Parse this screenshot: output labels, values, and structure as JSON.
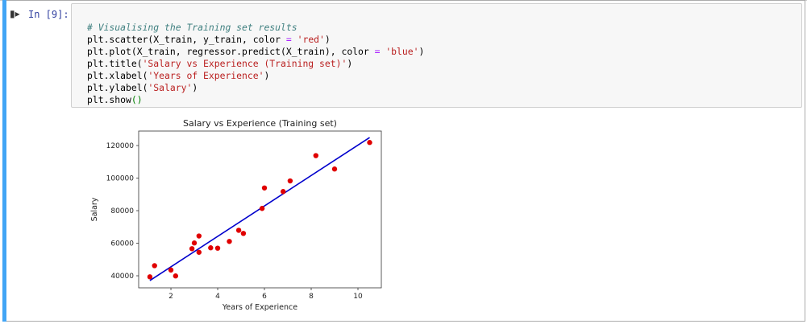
{
  "cell": {
    "prompt": "In [9]:",
    "run_icon": "step-run-icon",
    "code_lines": [
      {
        "comment": "# Visualising the Training set results"
      },
      {
        "pre": "plt.scatter(X_train, y_train, color ",
        "op": "=",
        "mid": " ",
        "str": "'red'",
        "post": ")"
      },
      {
        "pre": "plt.plot(X_train, regressor.predict(X_train), color ",
        "op": "=",
        "mid": " ",
        "str": "'blue'",
        "post": ")"
      },
      {
        "pre": "plt.title(",
        "str": "'Salary vs Experience (Training set)'",
        "post": ")"
      },
      {
        "pre": "plt.xlabel(",
        "str": "'Years of Experience'",
        "post": ")"
      },
      {
        "pre": "plt.ylabel(",
        "str": "'Salary'",
        "post": ")"
      },
      {
        "pre": "plt.show",
        "paren": "()"
      }
    ]
  },
  "chart_data": {
    "type": "scatter",
    "title": "Salary vs Experience (Training set)",
    "xlabel": "Years of Experience",
    "ylabel": "Salary",
    "xlim": [
      0.62,
      11.0
    ],
    "ylim": [
      32600,
      128900
    ],
    "xticks": [
      2,
      4,
      6,
      8,
      10
    ],
    "yticks": [
      40000,
      60000,
      80000,
      100000,
      120000
    ],
    "grid": false,
    "scatter_color": "#e00000",
    "line_color": "#0000cc",
    "points": {
      "x": [
        1.1,
        1.3,
        2.0,
        2.2,
        2.9,
        3.0,
        3.2,
        3.2,
        3.7,
        4.0,
        4.5,
        4.9,
        5.1,
        5.9,
        6.0,
        6.8,
        7.1,
        8.2,
        9.0,
        10.5
      ],
      "y": [
        39343,
        46205,
        43525,
        39891,
        56642,
        60150,
        64445,
        54445,
        57189,
        56957,
        61111,
        67938,
        66029,
        81363,
        93940,
        91738,
        98273,
        113812,
        105582,
        121872
      ]
    },
    "regression_line": {
      "x": [
        1.1,
        10.5
      ],
      "y": [
        37096,
        124939
      ]
    }
  }
}
